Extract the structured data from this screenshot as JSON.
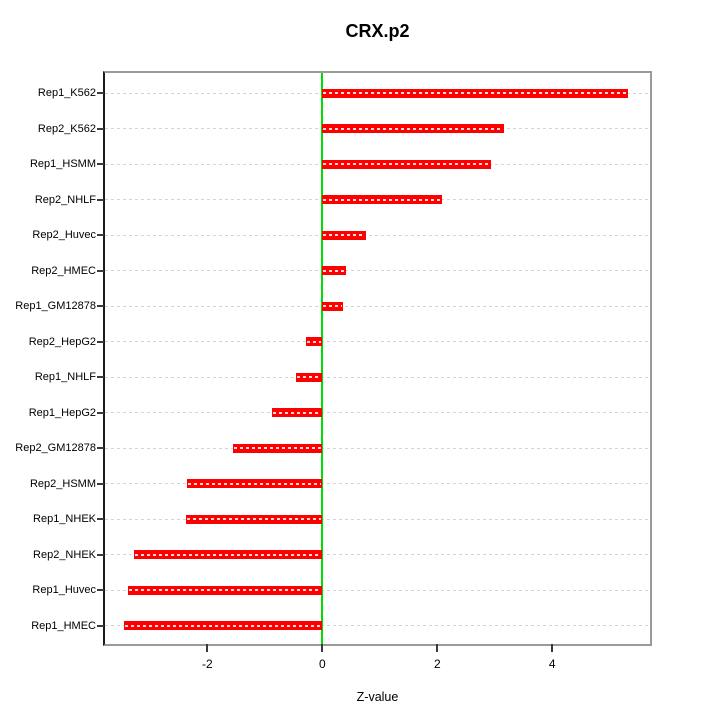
{
  "title": "CRX.p2",
  "chart_data": {
    "type": "bar",
    "orientation": "horizontal",
    "title": "CRX.p2",
    "xlabel": "Z-value",
    "ylabel": "",
    "categories": [
      "Rep1_K562",
      "Rep2_K562",
      "Rep1_HSMM",
      "Rep2_NHLF",
      "Rep2_Huvec",
      "Rep2_HMEC",
      "Rep1_GM12878",
      "Rep2_HepG2",
      "Rep1_NHLF",
      "Rep1_HepG2",
      "Rep2_GM12878",
      "Rep2_HSMM",
      "Rep1_NHEK",
      "Rep2_NHEK",
      "Rep1_Huvec",
      "Rep1_HMEC"
    ],
    "values": [
      5.31,
      3.16,
      2.93,
      2.09,
      0.76,
      0.42,
      0.36,
      -0.28,
      -0.46,
      -0.87,
      -1.55,
      -2.35,
      -2.37,
      -3.27,
      -3.38,
      -3.45
    ],
    "xticks": [
      -2,
      0,
      2,
      4
    ],
    "xtick_labels": [
      "-2",
      "0",
      "2",
      "4"
    ],
    "xlim": [
      -3.78,
      5.7
    ],
    "grid": true,
    "grid_style": "dotted",
    "legend": "none",
    "zero_line_value": 0,
    "colors": {
      "bar": "#fe0000",
      "zero_line": "#00dd00",
      "grid_line": "#d4d4d4",
      "box_border": "#9a9a9a",
      "axis_line": "#1b1b1b",
      "text": "#000000",
      "background": "#ffffff"
    }
  }
}
